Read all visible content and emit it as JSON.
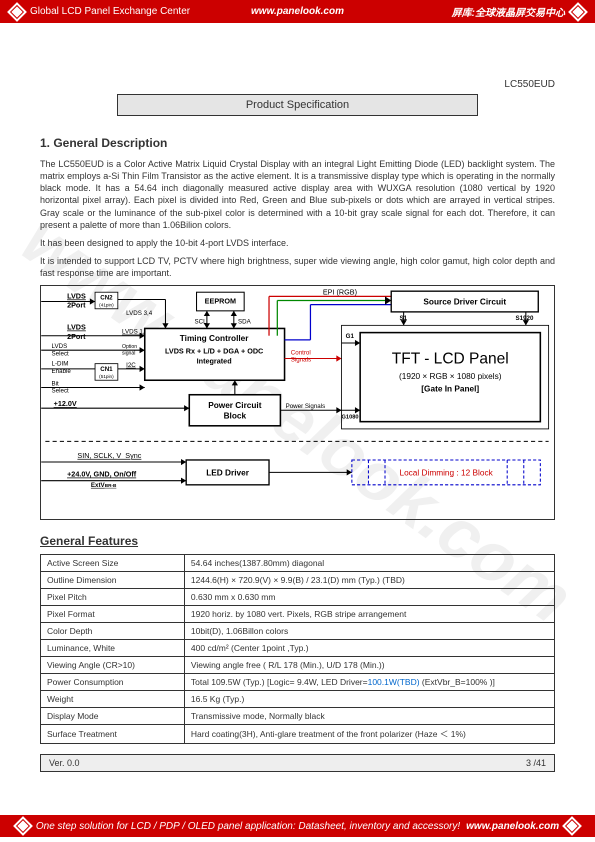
{
  "header": {
    "left": "Global LCD Panel Exchange Center",
    "mid": "www.panelook.com",
    "right": "屏库:全球液晶屏交易中心"
  },
  "product_id": "LC550EUD",
  "spec_header": "Product Specification",
  "section_title": "1. General Description",
  "paragraphs": [
    "The LC550EUD is a Color Active Matrix Liquid Crystal Display with an integral Light Emitting Diode (LED) backlight system. The matrix employs a-Si Thin Film Transistor as the active element. It is a transmissive display type which is operating in the normally black mode. It has a 54.64 inch  diagonally measured active display area with WUXGA resolution (1080 vertical by 1920 horizontal pixel array). Each pixel is divided into Red, Green and Blue sub-pixels or dots which are arrayed in vertical stripes. Gray scale or the luminance of the sub-pixel color is determined with a 10-bit gray scale signal for each dot. Therefore, it can present a palette of more than 1.06Bilion colors.",
    "It has been designed to apply the 10-bit 4-port LVDS interface.",
    "It is intended to support LCD TV, PCTV where high brightness, super wide viewing angle, high color gamut, high color depth and fast response time are important."
  ],
  "diagram": {
    "eeprom": "EEPROM",
    "timing_title": "Timing Controller",
    "timing_sub": "LVDS Rx + L/D + DGA + ODC\nIntegrated",
    "power": "Power Circuit\nBlock",
    "source_driver": "Source Driver Circuit",
    "panel_title": "TFT - LCD Panel",
    "panel_sub1": "(1920 × RGB × 1080 pixels)",
    "panel_sub2": "[Gate In Panel]",
    "led_driver": "LED Driver",
    "local_dim": "Local Dimming : 12 Block",
    "labels": {
      "lvds1": "LVDS",
      "port1": "2Port",
      "cn2": "CN2",
      "pin41": "(41pin)",
      "lvds2": "LVDS",
      "port2": "2Port",
      "lvds_select": "LVDS\nSelect",
      "ldim": "L-DIM\nEnable",
      "bit_sel": "Bit\nSelect",
      "cn1": "CN1",
      "pin51": "(51pin)",
      "v12": "+12.0V",
      "sin": "SIN, SCLK, V_Sync",
      "v24": "+24.0V, GND, On/Off",
      "ext": "ExtVBR-B",
      "lvds34": "LVDS 3,4",
      "scl": "SCL",
      "sda": "SDA",
      "lvds12": "LVDS 1,2",
      "opt": "Option\nsignal",
      "i2c": "I2C",
      "epi": "EPI (RGB)",
      "ctrl": "Control\nSignals",
      "pwr": "Power Signals",
      "s1": "S1",
      "s1920": "S1920",
      "g1": "G1",
      "g1080": "G1080"
    }
  },
  "features_title": "General Features",
  "features": [
    [
      "Active Screen Size",
      "54.64 inches(1387.80mm) diagonal"
    ],
    [
      "Outline Dimension",
      "1244.6(H) × 720.9(V) × 9.9(B) / 23.1(D) mm (Typ.) (TBD)"
    ],
    [
      "Pixel Pitch",
      "0.630 mm x 0.630 mm"
    ],
    [
      "Pixel Format",
      "1920  horiz. by 1080 vert. Pixels, RGB stripe arrangement"
    ],
    [
      "Color Depth",
      "10bit(D), 1.06Billon colors"
    ],
    [
      "Luminance, White",
      "400 cd/m² (Center 1point ,Typ.)"
    ],
    [
      "Viewing Angle (CR>10)",
      "Viewing angle free ( R/L 178 (Min.), U/D 178 (Min.))"
    ],
    [
      "Power Consumption",
      "Total 109.5W  (Typ.) [Logic= 9.4W, LED Driver=<span class='link-orange'>100.1W(TBD)</span>  (ExtVbr_B=100% )]"
    ],
    [
      "Weight",
      "16.5 Kg (Typ.)"
    ],
    [
      "Display Mode",
      "Transmissive mode, Normally black"
    ],
    [
      "Surface Treatment",
      "Hard coating(3H), Anti-glare treatment of the front polarizer (Haze ＜ 1%)"
    ]
  ],
  "version": "Ver. 0.0",
  "page_num": "3 /41",
  "footer": {
    "text": "One step solution for LCD / PDP / OLED panel application: Datasheet, inventory and accessory!",
    "site": "www.panelook.com"
  },
  "watermark": "www.panelook.com"
}
